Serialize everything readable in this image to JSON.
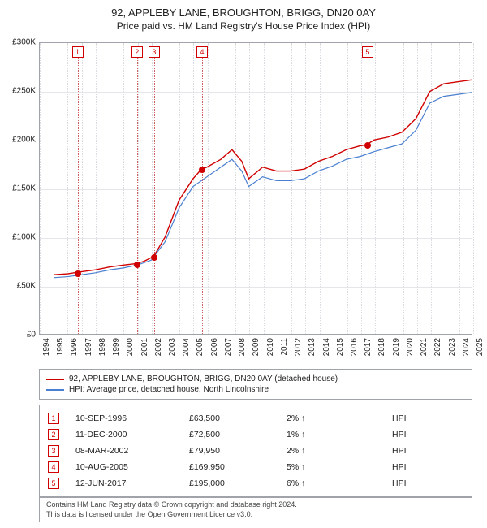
{
  "title": {
    "main": "92, APPLEBY LANE, BROUGHTON, BRIGG, DN20 0AY",
    "sub": "Price paid vs. HM Land Registry's House Price Index (HPI)"
  },
  "chart": {
    "type": "line",
    "background_color": "#ffffff",
    "grid_color": "#e4e6ea",
    "axis_color": "#a0a4aa",
    "marker_color": "#d00000",
    "x_range": [
      1994,
      2025
    ],
    "y_range": [
      0,
      300000
    ],
    "y_ticks": [
      {
        "v": 0,
        "label": "£0"
      },
      {
        "v": 50000,
        "label": "£50K"
      },
      {
        "v": 100000,
        "label": "£100K"
      },
      {
        "v": 150000,
        "label": "£150K"
      },
      {
        "v": 200000,
        "label": "£200K"
      },
      {
        "v": 250000,
        "label": "£250K"
      },
      {
        "v": 300000,
        "label": "£300K"
      }
    ],
    "x_ticks": [
      1994,
      1995,
      1996,
      1997,
      1998,
      1999,
      2000,
      2001,
      2002,
      2003,
      2004,
      2005,
      2006,
      2007,
      2008,
      2009,
      2010,
      2011,
      2012,
      2013,
      2014,
      2015,
      2016,
      2017,
      2018,
      2019,
      2020,
      2021,
      2022,
      2023,
      2024,
      2025
    ],
    "series": [
      {
        "name": "92, APPLEBY LANE, BROUGHTON, BRIGG, DN20 0AY (detached house)",
        "color": "#d00000",
        "line_width": 1.4,
        "data": [
          [
            1995.0,
            61000
          ],
          [
            1996.0,
            62000
          ],
          [
            1996.7,
            63500
          ],
          [
            1998.0,
            66000
          ],
          [
            1999.0,
            69000
          ],
          [
            2000.0,
            71000
          ],
          [
            2000.95,
            72500
          ],
          [
            2001.5,
            75000
          ],
          [
            2002.18,
            79950
          ],
          [
            2003.0,
            100000
          ],
          [
            2004.0,
            138000
          ],
          [
            2005.0,
            160000
          ],
          [
            2005.61,
            169950
          ],
          [
            2006.0,
            172000
          ],
          [
            2007.0,
            180000
          ],
          [
            2007.8,
            190000
          ],
          [
            2008.5,
            178000
          ],
          [
            2009.0,
            160000
          ],
          [
            2010.0,
            172000
          ],
          [
            2011.0,
            168000
          ],
          [
            2012.0,
            168000
          ],
          [
            2013.0,
            170000
          ],
          [
            2014.0,
            178000
          ],
          [
            2015.0,
            183000
          ],
          [
            2016.0,
            190000
          ],
          [
            2017.0,
            194000
          ],
          [
            2017.45,
            195000
          ],
          [
            2018.0,
            200000
          ],
          [
            2019.0,
            203000
          ],
          [
            2020.0,
            208000
          ],
          [
            2021.0,
            222000
          ],
          [
            2022.0,
            250000
          ],
          [
            2023.0,
            258000
          ],
          [
            2024.0,
            260000
          ],
          [
            2025.0,
            262000
          ]
        ]
      },
      {
        "name": "HPI: Average price, detached house, North Lincolnshire",
        "color": "#4a7fd1",
        "line_width": 1.2,
        "data": [
          [
            1995.0,
            58000
          ],
          [
            1996.0,
            59000
          ],
          [
            1997.0,
            61000
          ],
          [
            1998.0,
            63000
          ],
          [
            1999.0,
            66000
          ],
          [
            2000.0,
            68000
          ],
          [
            2001.0,
            71000
          ],
          [
            2002.0,
            76000
          ],
          [
            2003.0,
            95000
          ],
          [
            2004.0,
            130000
          ],
          [
            2005.0,
            152000
          ],
          [
            2006.0,
            162000
          ],
          [
            2007.0,
            172000
          ],
          [
            2007.8,
            180000
          ],
          [
            2008.5,
            168000
          ],
          [
            2009.0,
            152000
          ],
          [
            2010.0,
            162000
          ],
          [
            2011.0,
            158000
          ],
          [
            2012.0,
            158000
          ],
          [
            2013.0,
            160000
          ],
          [
            2014.0,
            168000
          ],
          [
            2015.0,
            173000
          ],
          [
            2016.0,
            180000
          ],
          [
            2017.0,
            183000
          ],
          [
            2018.0,
            188000
          ],
          [
            2019.0,
            192000
          ],
          [
            2020.0,
            196000
          ],
          [
            2021.0,
            210000
          ],
          [
            2022.0,
            238000
          ],
          [
            2023.0,
            245000
          ],
          [
            2024.0,
            247000
          ],
          [
            2025.0,
            249000
          ]
        ]
      }
    ],
    "sale_markers": [
      {
        "num": "1",
        "year": 1996.7
      },
      {
        "num": "2",
        "year": 2000.95
      },
      {
        "num": "3",
        "year": 2002.18
      },
      {
        "num": "4",
        "year": 2005.61
      },
      {
        "num": "5",
        "year": 2017.45
      }
    ],
    "sale_points": [
      {
        "year": 1996.7,
        "price": 63500
      },
      {
        "year": 2000.95,
        "price": 72500
      },
      {
        "year": 2002.18,
        "price": 79950
      },
      {
        "year": 2005.61,
        "price": 169950
      },
      {
        "year": 2017.45,
        "price": 195000
      }
    ]
  },
  "sales": [
    {
      "num": "1",
      "date": "10-SEP-1996",
      "price": "£63,500",
      "delta": "2%",
      "suffix": "HPI"
    },
    {
      "num": "2",
      "date": "11-DEC-2000",
      "price": "£72,500",
      "delta": "1%",
      "suffix": "HPI"
    },
    {
      "num": "3",
      "date": "08-MAR-2002",
      "price": "£79,950",
      "delta": "2%",
      "suffix": "HPI"
    },
    {
      "num": "4",
      "date": "10-AUG-2005",
      "price": "£169,950",
      "delta": "5%",
      "suffix": "HPI"
    },
    {
      "num": "5",
      "date": "12-JUN-2017",
      "price": "£195,000",
      "delta": "6%",
      "suffix": "HPI"
    }
  ],
  "footer": {
    "line1": "Contains HM Land Registry data © Crown copyright and database right 2024.",
    "line2": "This data is licensed under the Open Government Licence v3.0."
  }
}
